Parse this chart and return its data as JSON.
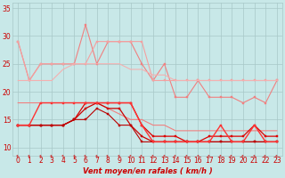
{
  "x": [
    0,
    1,
    2,
    3,
    4,
    5,
    6,
    7,
    8,
    9,
    10,
    11,
    12,
    13,
    14,
    15,
    16,
    17,
    18,
    19,
    20,
    21,
    22,
    23
  ],
  "series": [
    {
      "y": [
        29,
        22,
        25,
        25,
        25,
        25,
        32,
        25,
        29,
        29,
        29,
        25,
        22,
        25,
        19,
        19,
        22,
        19,
        19,
        19,
        18,
        19,
        18,
        22
      ],
      "color": "#f08080",
      "lw": 0.8,
      "marker": "s",
      "ms": 1.5
    },
    {
      "y": [
        29,
        22,
        25,
        25,
        25,
        25,
        25,
        29,
        29,
        29,
        29,
        29,
        22,
        22,
        22,
        22,
        22,
        22,
        22,
        22,
        22,
        22,
        22,
        22
      ],
      "color": "#f4a0a0",
      "lw": 0.8,
      "marker": "s",
      "ms": 1.5
    },
    {
      "y": [
        22,
        22,
        22,
        22,
        24,
        25,
        25,
        25,
        25,
        25,
        24,
        24,
        23,
        23,
        22,
        22,
        22,
        22,
        22,
        22,
        22,
        22,
        22,
        22
      ],
      "color": "#f4b0b0",
      "lw": 0.8,
      "marker": null,
      "ms": 0
    },
    {
      "y": [
        18,
        18,
        18,
        18,
        18,
        18,
        18,
        18,
        17,
        16,
        15,
        15,
        14,
        14,
        13,
        13,
        13,
        13,
        13,
        13,
        13,
        13,
        13,
        13
      ],
      "color": "#f08080",
      "lw": 0.8,
      "marker": null,
      "ms": 0
    },
    {
      "y": [
        14,
        14,
        14,
        14,
        14,
        15,
        18,
        18,
        18,
        18,
        18,
        14,
        12,
        12,
        12,
        11,
        11,
        12,
        12,
        12,
        12,
        14,
        12,
        12
      ],
      "color": "#dd0000",
      "lw": 0.9,
      "marker": "s",
      "ms": 1.5
    },
    {
      "y": [
        14,
        14,
        14,
        14,
        14,
        15,
        17,
        18,
        17,
        17,
        14,
        12,
        11,
        11,
        11,
        11,
        11,
        11,
        11,
        11,
        11,
        11,
        11,
        11
      ],
      "color": "#cc0000",
      "lw": 0.9,
      "marker": "s",
      "ms": 1.5
    },
    {
      "y": [
        14,
        14,
        14,
        14,
        14,
        15,
        15,
        17,
        16,
        14,
        14,
        11,
        11,
        11,
        11,
        11,
        11,
        11,
        11,
        11,
        11,
        11,
        11,
        11
      ],
      "color": "#bb0000",
      "lw": 0.8,
      "marker": "s",
      "ms": 1.5
    },
    {
      "y": [
        14,
        14,
        18,
        18,
        18,
        18,
        18,
        18,
        18,
        18,
        18,
        14,
        11,
        11,
        11,
        11,
        11,
        11,
        14,
        11,
        11,
        14,
        11,
        11
      ],
      "color": "#ff3333",
      "lw": 1.0,
      "marker": "s",
      "ms": 1.8
    }
  ],
  "xlabel": "Vent moyen/en rafales ( km/h )",
  "xlim": [
    -0.5,
    23.5
  ],
  "ylim": [
    8.5,
    36
  ],
  "yticks": [
    10,
    15,
    20,
    25,
    30,
    35
  ],
  "xticks": [
    0,
    1,
    2,
    3,
    4,
    5,
    6,
    7,
    8,
    9,
    10,
    11,
    12,
    13,
    14,
    15,
    16,
    17,
    18,
    19,
    20,
    21,
    22,
    23
  ],
  "bg_color": "#c8e8e8",
  "grid_color": "#a8c8c8",
  "tick_color": "#cc0000",
  "xlabel_color": "#cc0000",
  "axis_fontsize": 5.5
}
